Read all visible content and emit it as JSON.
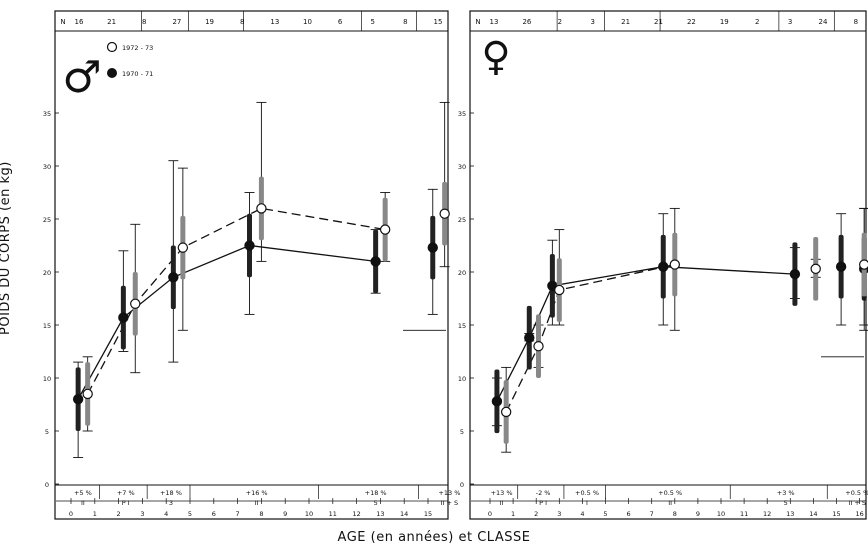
{
  "chart_data": {
    "ylabel": "POIDS DU CORPS (en kg)",
    "xlabel": "AGE (en années) et CLASSE",
    "ylim": [
      0,
      40
    ],
    "x_ticks": [
      0,
      1,
      2,
      3,
      4,
      5,
      6,
      7,
      8,
      9,
      10,
      11,
      12,
      13,
      14,
      15,
      16
    ],
    "y_ticks": [
      0,
      5,
      10,
      15,
      20,
      25,
      30,
      35
    ],
    "legend_entries": [
      "1972 - 73",
      "1970 - 71"
    ],
    "panels": [
      {
        "symbol": "♂",
        "n_header": [
          "16",
          "21",
          "8",
          "27",
          "19",
          "8",
          "13",
          "10",
          "6",
          "5",
          "8",
          "15"
        ],
        "class_labels": [
          "+5 %",
          "+7 %",
          "+18 %",
          "+16 %",
          "+18 %",
          "+13 %"
        ],
        "class_sublabels": [
          "II",
          "P I",
          "3",
          "II",
          "5",
          "II + S"
        ],
        "series": [
          {
            "name": "1970 - 71",
            "line": "solid",
            "marker": "filled",
            "points": [
              {
                "x": 0.3,
                "y": 8.0,
                "lo": 2.5,
                "hi": 11.5
              },
              {
                "x": 2.2,
                "y": 15.7,
                "lo": 12.5,
                "hi": 22.0
              },
              {
                "x": 4.3,
                "y": 19.5,
                "lo": 11.5,
                "hi": 30.5
              },
              {
                "x": 7.5,
                "y": 22.5,
                "lo": 16.0,
                "hi": 27.5
              },
              {
                "x": 12.8,
                "y": 21.0,
                "lo": 18.0,
                "hi": 24.0
              },
              {
                "x": 15.2,
                "y": 22.3,
                "lo": 16.0,
                "hi": 27.8
              }
            ]
          },
          {
            "name": "1972 - 73",
            "line": "dashed",
            "marker": "open",
            "points": [
              {
                "x": 0.7,
                "y": 8.5,
                "lo": 5.0,
                "hi": 12.0
              },
              {
                "x": 2.7,
                "y": 17.0,
                "lo": 10.5,
                "hi": 24.5
              },
              {
                "x": 4.7,
                "y": 22.3,
                "lo": 14.5,
                "hi": 29.8
              },
              {
                "x": 8.0,
                "y": 26.0,
                "lo": 21.0,
                "hi": 36.0
              },
              {
                "x": 13.2,
                "y": 24.0,
                "lo": 21.0,
                "hi": 27.5
              },
              {
                "x": 15.7,
                "y": 25.5,
                "lo": 20.5,
                "hi": 36.0
              }
            ]
          }
        ]
      },
      {
        "symbol": "♀",
        "n_header": [
          "13",
          "26",
          "2",
          "3",
          "21",
          "21",
          "22",
          "19",
          "2",
          "3",
          "24",
          "8"
        ],
        "class_labels": [
          "+13 %",
          "-2 %",
          "+0.5 %",
          "+0.5 %",
          "+3 %",
          "+0.5 %"
        ],
        "class_sublabels": [
          "II",
          "P I",
          "I",
          "II",
          "5",
          "II + S"
        ],
        "series": [
          {
            "name": "1970 - 71",
            "line": "solid",
            "marker": "filled",
            "points": [
              {
                "x": 0.3,
                "y": 7.8,
                "lo": 5.5,
                "hi": 10.0
              },
              {
                "x": 1.7,
                "y": 13.8,
                "lo": 13.5,
                "hi": 14.2
              },
              {
                "x": 2.7,
                "y": 18.7,
                "lo": 15.0,
                "hi": 23.0
              },
              {
                "x": 7.5,
                "y": 20.5,
                "lo": 15.0,
                "hi": 25.5
              },
              {
                "x": 13.2,
                "y": 19.8,
                "lo": 17.5,
                "hi": 22.3
              },
              {
                "x": 15.2,
                "y": 20.5,
                "lo": 15.0,
                "hi": 25.5
              },
              {
                "x": 16.2,
                "y": 20.3,
                "lo": 14.5,
                "hi": 26.0
              }
            ]
          },
          {
            "name": "1972 - 73",
            "line": "dashed",
            "marker": "open",
            "points": [
              {
                "x": 0.7,
                "y": 6.8,
                "lo": 3.0,
                "hi": 11.0
              },
              {
                "x": 2.1,
                "y": 13.0,
                "lo": 11.0,
                "hi": 15.0
              },
              {
                "x": 3.0,
                "y": 18.3,
                "lo": 15.0,
                "hi": 24.0
              },
              {
                "x": 8.0,
                "y": 20.7,
                "lo": 14.5,
                "hi": 26.0
              },
              {
                "x": 14.1,
                "y": 20.3,
                "lo": 19.5,
                "hi": 21.2
              },
              {
                "x": 16.2,
                "y": 20.7,
                "lo": 15.0,
                "hi": 26.0
              }
            ]
          }
        ]
      }
    ]
  }
}
